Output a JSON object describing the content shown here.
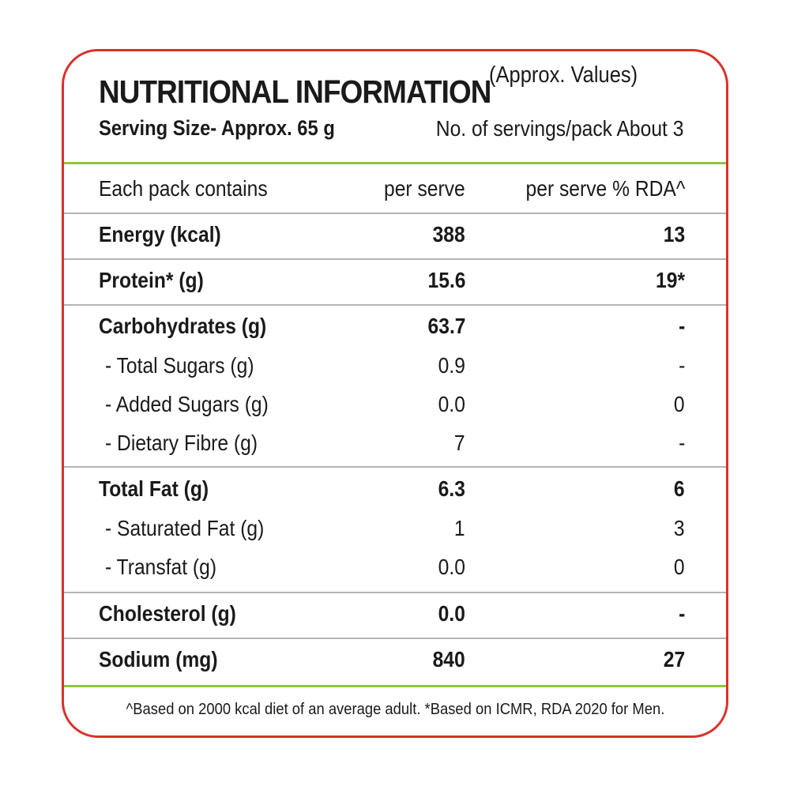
{
  "header": {
    "title": "NUTRITIONAL INFORMATION",
    "subtitle": "(Approx. Values)",
    "serving_size": "Serving Size- Approx. 65 g",
    "servings_per_pack": "No. of servings/pack About 3"
  },
  "columns": {
    "name": "Each pack contains",
    "per_serve": "per serve",
    "rda": "per serve % RDA^"
  },
  "rows": [
    {
      "name": "Energy (kcal)",
      "per_serve": "388",
      "rda": "13"
    },
    {
      "name": "Protein* (g)",
      "per_serve": "15.6",
      "rda": "19*"
    },
    {
      "name": "Carbohydrates (g)",
      "per_serve": "63.7",
      "rda": "-"
    },
    {
      "name": "-  Total Sugars (g)",
      "per_serve": "0.9",
      "rda": "-"
    },
    {
      "name": "-  Added Sugars (g)",
      "per_serve": "0.0",
      "rda": "0"
    },
    {
      "name": "-  Dietary Fibre (g)",
      "per_serve": "7",
      "rda": "-"
    },
    {
      "name": "Total Fat (g)",
      "per_serve": "6.3",
      "rda": "6"
    },
    {
      "name": "-  Saturated Fat (g)",
      "per_serve": "1",
      "rda": "3"
    },
    {
      "name": "-  Transfat (g)",
      "per_serve": "0.0",
      "rda": "0"
    },
    {
      "name": "Cholesterol (g)",
      "per_serve": "0.0",
      "rda": "-"
    },
    {
      "name": "Sodium (mg)",
      "per_serve": "840",
      "rda": "27"
    }
  ],
  "footer": "^Based on 2000 kcal diet of an average adult.   *Based on ICMR, RDA 2020 for Men.",
  "colors": {
    "border": "#d8322a",
    "accent_rule": "#8dc63f",
    "row_rule": "#b4b4b4"
  }
}
